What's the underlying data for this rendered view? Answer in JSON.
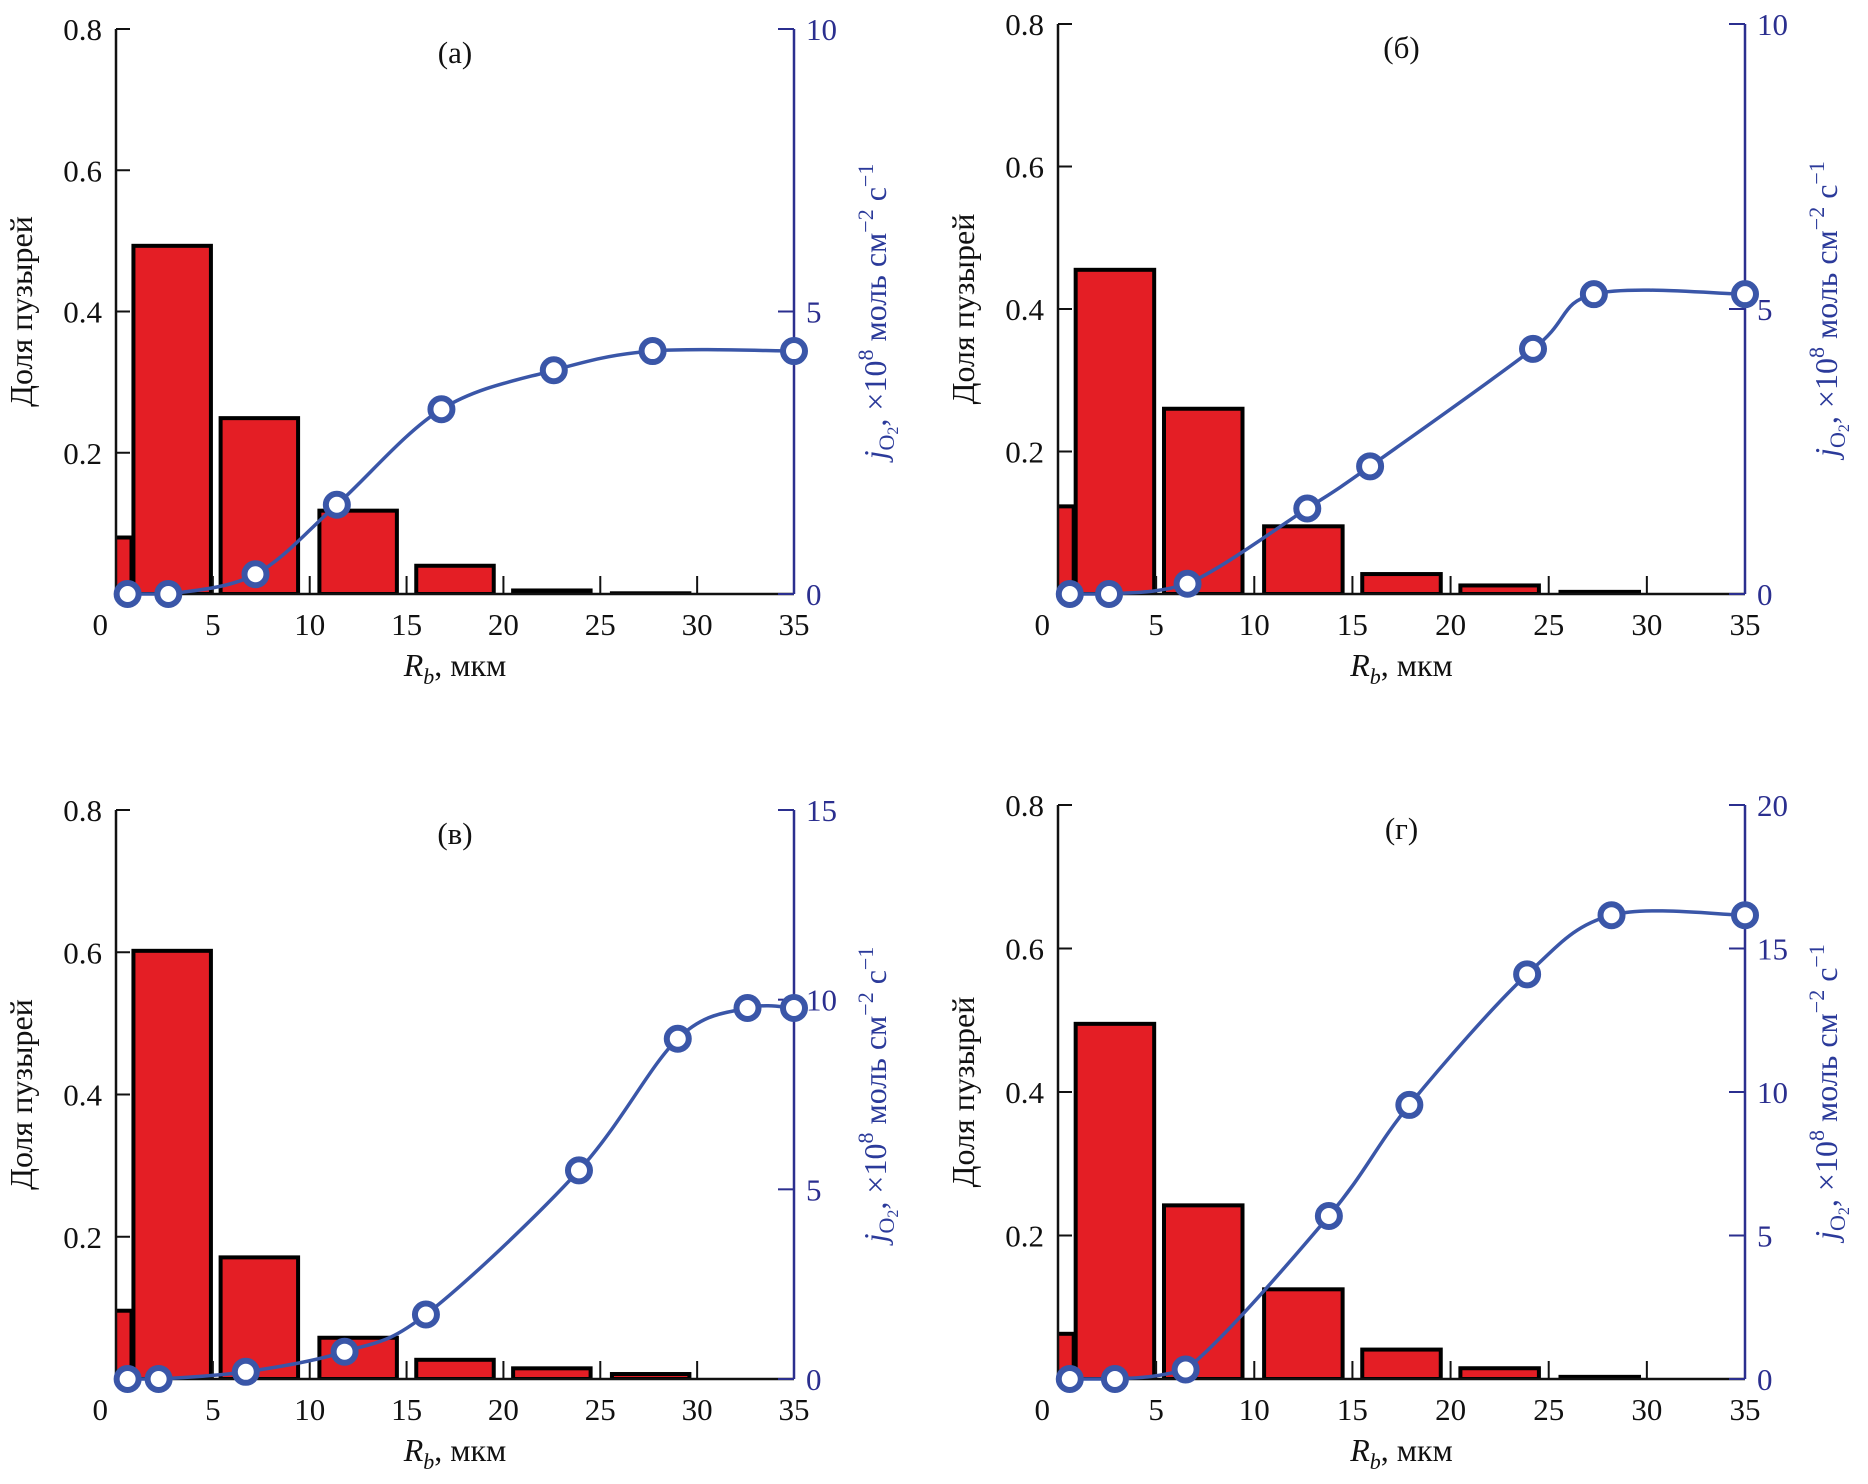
{
  "colors": {
    "bar_fill": "#e41e25",
    "bar_edge": "#000000",
    "curve": "#3a56a8",
    "right_axis": "#2b2f8f"
  },
  "shared_labels": {
    "left_ylabel": "Доля пузырей",
    "xlabel_main": "R",
    "xlabel_sub": "b",
    "xlabel_rest": ", мкм",
    "right_ylabel": {
      "j": "j",
      "sub": "O",
      "subsub": "2",
      "rest": ", ×10",
      "sup8": "8",
      "unit": " моль см",
      "sup2": "−2",
      "unit2": " с",
      "sup1": "−1"
    }
  },
  "chart_data": [
    {
      "type": "bar+line",
      "panel_label": "(а)",
      "xlim": [
        0,
        35
      ],
      "xticks": [
        "0",
        "5",
        "10",
        "15",
        "20",
        "25",
        "30",
        "35"
      ],
      "ylim_left": [
        0,
        0.8
      ],
      "yticks_left": [
        "0.2",
        "0.4",
        "0.6",
        "0.8"
      ],
      "ylim_right": [
        0,
        10
      ],
      "yticks_right": [
        "0",
        "5",
        "10"
      ],
      "bars": {
        "centers": [
          -1.2,
          2.9,
          7.4,
          12.5,
          17.5,
          22.5,
          27.6
        ],
        "width": 4,
        "values": [
          0.08,
          0.493,
          0.249,
          0.118,
          0.04,
          0.005,
          0.001
        ]
      },
      "points": {
        "x": [
          0.6,
          2.7,
          7.2,
          11.4,
          16.8,
          22.6,
          27.7,
          35
        ],
        "y": [
          0,
          0,
          0.35,
          1.58,
          3.27,
          3.96,
          4.3,
          4.3
        ]
      }
    },
    {
      "type": "bar+line",
      "panel_label": "(б)",
      "xlim": [
        0,
        35
      ],
      "xticks": [
        "0",
        "5",
        "10",
        "15",
        "20",
        "25",
        "30",
        "35"
      ],
      "ylim_left": [
        0,
        0.8
      ],
      "yticks_left": [
        "0.2",
        "0.4",
        "0.6",
        "0.8"
      ],
      "ylim_right": [
        0,
        10
      ],
      "yticks_right": [
        "0",
        "5",
        "10"
      ],
      "bars": {
        "centers": [
          -1.2,
          2.9,
          7.4,
          12.5,
          17.5,
          22.5,
          27.6
        ],
        "width": 4,
        "values": [
          0.123,
          0.455,
          0.26,
          0.095,
          0.028,
          0.012,
          0.003
        ]
      },
      "points": {
        "x": [
          0.6,
          2.6,
          6.6,
          12.7,
          15.9,
          24.2,
          27.3,
          35
        ],
        "y": [
          0,
          0,
          0.18,
          1.5,
          2.24,
          4.3,
          5.26,
          5.26
        ]
      }
    },
    {
      "type": "bar+line",
      "panel_label": "(в)",
      "xlim": [
        0,
        35
      ],
      "xticks": [
        "0",
        "5",
        "10",
        "15",
        "20",
        "25",
        "30",
        "35"
      ],
      "ylim_left": [
        0,
        0.8
      ],
      "yticks_left": [
        "0.2",
        "0.4",
        "0.6",
        "0.8"
      ],
      "ylim_right": [
        0,
        15
      ],
      "yticks_right": [
        "0",
        "5",
        "10",
        "15"
      ],
      "bars": {
        "centers": [
          -1.2,
          2.9,
          7.4,
          12.5,
          17.5,
          22.5,
          27.6
        ],
        "width": 4,
        "values": [
          0.096,
          0.602,
          0.171,
          0.058,
          0.027,
          0.015,
          0.007
        ]
      },
      "points": {
        "x": [
          0.6,
          2.2,
          6.7,
          11.8,
          16.0,
          23.9,
          29.0,
          32.6,
          35
        ],
        "y": [
          0,
          0,
          0.19,
          0.72,
          1.7,
          5.5,
          8.97,
          9.78,
          9.78
        ]
      }
    },
    {
      "type": "bar+line",
      "panel_label": "(г)",
      "xlim": [
        0,
        35
      ],
      "xticks": [
        "0",
        "5",
        "10",
        "15",
        "20",
        "25",
        "30",
        "35"
      ],
      "ylim_left": [
        0,
        0.8
      ],
      "yticks_left": [
        "0.2",
        "0.4",
        "0.6",
        "0.8"
      ],
      "ylim_right": [
        0,
        20
      ],
      "yticks_right": [
        "0",
        "5",
        "10",
        "15",
        "20"
      ],
      "bars": {
        "centers": [
          -1.2,
          2.9,
          7.4,
          12.5,
          17.5,
          22.5,
          27.6
        ],
        "width": 4,
        "values": [
          0.063,
          0.495,
          0.242,
          0.125,
          0.041,
          0.015,
          0.003
        ]
      },
      "points": {
        "x": [
          0.6,
          2.9,
          6.5,
          13.8,
          17.9,
          23.9,
          28.2,
          35
        ],
        "y": [
          0,
          0,
          0.33,
          5.68,
          9.55,
          14.1,
          16.16,
          16.16
        ]
      }
    }
  ]
}
